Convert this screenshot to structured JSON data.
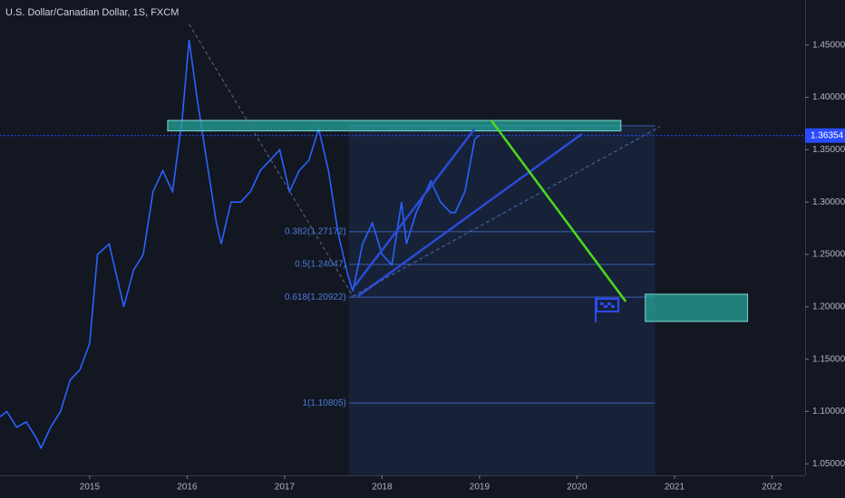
{
  "chart_data": {
    "type": "line",
    "title": "U.S. Dollar/Canadian Dollar, 1S, FXCM",
    "x": [
      2014.08,
      2014.15,
      2014.25,
      2014.35,
      2014.45,
      2014.5,
      2014.6,
      2014.7,
      2014.8,
      2014.9,
      2015.0,
      2015.08,
      2015.2,
      2015.3,
      2015.35,
      2015.45,
      2015.55,
      2015.65,
      2015.75,
      2015.85,
      2015.95,
      2016.02,
      2016.1,
      2016.2,
      2016.3,
      2016.35,
      2016.45,
      2016.55,
      2016.65,
      2016.75,
      2016.85,
      2016.95,
      2017.05,
      2017.15,
      2017.25,
      2017.35,
      2017.45,
      2017.55,
      2017.65,
      2017.7,
      2017.8,
      2017.9,
      2018.0,
      2018.1,
      2018.2,
      2018.25,
      2018.35,
      2018.45,
      2018.5,
      2018.6,
      2018.7,
      2018.75,
      2018.85,
      2018.95,
      2019.0
    ],
    "series": [
      {
        "color": "#2962ff",
        "values": [
          1.095,
          1.1,
          1.085,
          1.09,
          1.075,
          1.065,
          1.085,
          1.1,
          1.13,
          1.14,
          1.165,
          1.25,
          1.26,
          1.22,
          1.2,
          1.235,
          1.25,
          1.31,
          1.33,
          1.31,
          1.38,
          1.455,
          1.4,
          1.34,
          1.28,
          1.26,
          1.3,
          1.3,
          1.31,
          1.33,
          1.34,
          1.35,
          1.31,
          1.33,
          1.34,
          1.37,
          1.33,
          1.27,
          1.23,
          1.215,
          1.26,
          1.28,
          1.25,
          1.24,
          1.3,
          1.26,
          1.29,
          1.31,
          1.32,
          1.3,
          1.29,
          1.29,
          1.31,
          1.36,
          1.364
        ]
      }
    ],
    "xlim": [
      2014.08,
      2022.34
    ],
    "xticks": [
      2015,
      2016,
      2017,
      2018,
      2019,
      2020,
      2021,
      2022
    ],
    "ylim": [
      1.039,
      1.493
    ],
    "yticks": [
      {
        "value": 1.05,
        "label": "1.05000"
      },
      {
        "value": 1.1,
        "label": "1.10000"
      },
      {
        "value": 1.15,
        "label": "1.15000"
      },
      {
        "value": 1.2,
        "label": "1.20000"
      },
      {
        "value": 1.25,
        "label": "1.25000"
      },
      {
        "value": 1.3,
        "label": "1.30000"
      },
      {
        "value": 1.35,
        "label": "1.35000"
      },
      {
        "value": 1.4,
        "label": "1.40000"
      },
      {
        "value": 1.45,
        "label": "1.45000"
      }
    ],
    "grid": false,
    "last_price": 1.36354,
    "fib_range": {
      "x": [
        2017.66,
        2020.8
      ],
      "top": 1.37289
    },
    "fib_levels": [
      {
        "value": 1.27172,
        "label": "0.382(1.27172)"
      },
      {
        "value": 1.24047,
        "label": "0.5(1.24047)"
      },
      {
        "value": 1.20922,
        "label": "0.618(1.20922)"
      },
      {
        "value": 1.10805,
        "label": "1(1.10805)"
      }
    ],
    "zones": [
      {
        "x": [
          2015.8,
          2020.45
        ],
        "y": [
          1.368,
          1.378
        ],
        "color": "#26a69a"
      },
      {
        "x": [
          2020.7,
          2021.75
        ],
        "y": [
          1.186,
          1.212
        ],
        "color": "#26a69a"
      }
    ],
    "lines": [
      {
        "x": [
          2017.72,
          2018.95
        ],
        "y": [
          1.22,
          1.37
        ],
        "color": "#2a4bd7",
        "dash": false
      },
      {
        "x": [
          2017.75,
          2020.05
        ],
        "y": [
          1.21,
          1.365
        ],
        "color": "#2a4bd7",
        "dash": false
      },
      {
        "x": [
          2016.02,
          2017.7
        ],
        "y": [
          1.47,
          1.21
        ],
        "color": "#5a6a8a",
        "dash": true
      },
      {
        "x": [
          2017.7,
          2020.85
        ],
        "y": [
          1.21,
          1.372
        ],
        "color": "#4a6ab0",
        "dash": true
      },
      {
        "x": [
          2019.12,
          2020.5
        ],
        "y": [
          1.378,
          1.205
        ],
        "color": "#4cdb1a",
        "dash": false
      }
    ]
  }
}
